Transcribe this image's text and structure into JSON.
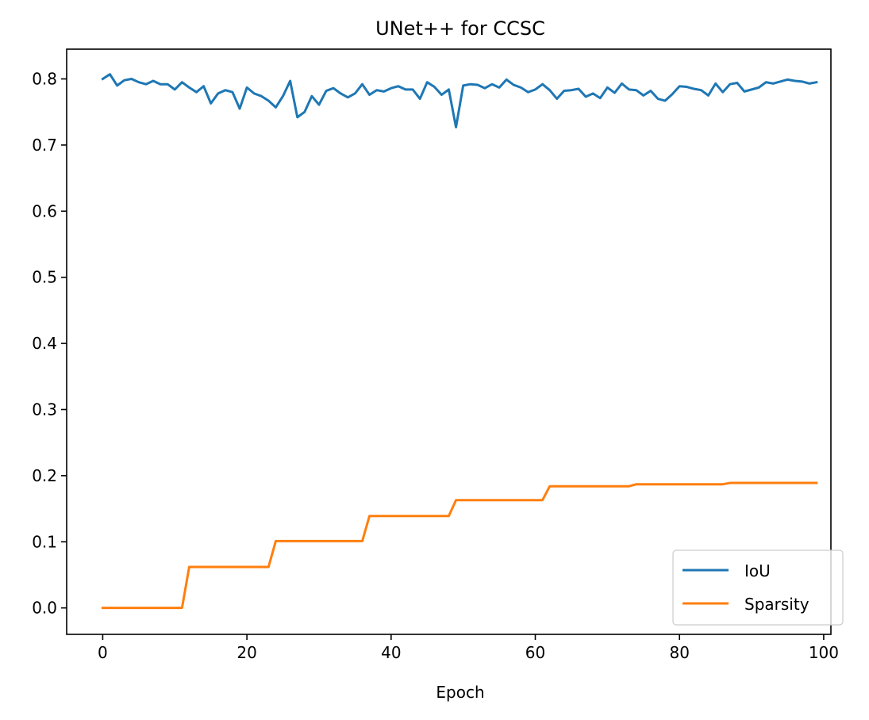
{
  "chart_data": {
    "type": "line",
    "title": "UNet++ for CCSC",
    "xlabel": "Epoch",
    "ylabel": "",
    "xlim": [
      -5,
      101
    ],
    "ylim": [
      -0.04,
      0.845
    ],
    "xticks": [
      0,
      20,
      40,
      60,
      80,
      100
    ],
    "yticks": [
      0.0,
      0.1,
      0.2,
      0.3,
      0.4,
      0.5,
      0.6,
      0.7,
      0.8
    ],
    "xtick_labels": [
      "0",
      "20",
      "40",
      "60",
      "80",
      "100"
    ],
    "ytick_labels": [
      "0.0",
      "0.1",
      "0.2",
      "0.3",
      "0.4",
      "0.5",
      "0.6",
      "0.7",
      "0.8"
    ],
    "grid": false,
    "legend_position": "lower-right",
    "series": [
      {
        "name": "IoU",
        "color": "#1f77b4",
        "x": [
          0,
          1,
          2,
          3,
          4,
          5,
          6,
          7,
          8,
          9,
          10,
          11,
          12,
          13,
          14,
          15,
          16,
          17,
          18,
          19,
          20,
          21,
          22,
          23,
          24,
          25,
          26,
          27,
          28,
          29,
          30,
          31,
          32,
          33,
          34,
          35,
          36,
          37,
          38,
          39,
          40,
          41,
          42,
          43,
          44,
          45,
          46,
          47,
          48,
          49,
          50,
          51,
          52,
          53,
          54,
          55,
          56,
          57,
          58,
          59,
          60,
          61,
          62,
          63,
          64,
          65,
          66,
          67,
          68,
          69,
          70,
          71,
          72,
          73,
          74,
          75,
          76,
          77,
          78,
          79,
          80,
          81,
          82,
          83,
          84,
          85,
          86,
          87,
          88,
          89,
          90,
          91,
          92,
          93,
          94,
          95,
          96,
          97,
          98,
          99
        ],
        "values": [
          0.8,
          0.807,
          0.79,
          0.798,
          0.8,
          0.795,
          0.792,
          0.797,
          0.792,
          0.792,
          0.784,
          0.795,
          0.787,
          0.78,
          0.789,
          0.763,
          0.778,
          0.783,
          0.78,
          0.755,
          0.787,
          0.778,
          0.774,
          0.767,
          0.757,
          0.774,
          0.797,
          0.742,
          0.75,
          0.774,
          0.761,
          0.782,
          0.786,
          0.778,
          0.772,
          0.778,
          0.792,
          0.776,
          0.783,
          0.781,
          0.786,
          0.789,
          0.784,
          0.784,
          0.77,
          0.795,
          0.788,
          0.776,
          0.784,
          0.727,
          0.79,
          0.792,
          0.791,
          0.786,
          0.792,
          0.787,
          0.799,
          0.791,
          0.787,
          0.78,
          0.784,
          0.792,
          0.783,
          0.77,
          0.782,
          0.783,
          0.785,
          0.773,
          0.778,
          0.771,
          0.787,
          0.779,
          0.793,
          0.784,
          0.783,
          0.775,
          0.782,
          0.77,
          0.767,
          0.777,
          0.789,
          0.788,
          0.785,
          0.783,
          0.775,
          0.793,
          0.78,
          0.792,
          0.794,
          0.781,
          0.784,
          0.787,
          0.795,
          0.793,
          0.796,
          0.799,
          0.797,
          0.796,
          0.793,
          0.795
        ]
      },
      {
        "name": "Sparsity",
        "color": "#ff7f0e",
        "x": [
          0,
          1,
          2,
          3,
          4,
          5,
          6,
          7,
          8,
          9,
          10,
          11,
          12,
          13,
          14,
          15,
          16,
          17,
          18,
          19,
          20,
          21,
          22,
          23,
          24,
          25,
          26,
          27,
          28,
          29,
          30,
          31,
          32,
          33,
          34,
          35,
          36,
          37,
          38,
          39,
          40,
          41,
          42,
          43,
          44,
          45,
          46,
          47,
          48,
          49,
          50,
          51,
          52,
          53,
          54,
          55,
          56,
          57,
          58,
          59,
          60,
          61,
          62,
          63,
          64,
          65,
          66,
          67,
          68,
          69,
          70,
          71,
          72,
          73,
          74,
          75,
          76,
          77,
          78,
          79,
          80,
          81,
          82,
          83,
          84,
          85,
          86,
          87,
          88,
          89,
          90,
          91,
          92,
          93,
          94,
          95,
          96,
          97,
          98,
          99
        ],
        "values": [
          0.0,
          0.0,
          0.0,
          0.0,
          0.0,
          0.0,
          0.0,
          0.0,
          0.0,
          0.0,
          0.0,
          0.0,
          0.062,
          0.062,
          0.062,
          0.062,
          0.062,
          0.062,
          0.062,
          0.062,
          0.062,
          0.062,
          0.062,
          0.062,
          0.101,
          0.101,
          0.101,
          0.101,
          0.101,
          0.101,
          0.101,
          0.101,
          0.101,
          0.101,
          0.101,
          0.101,
          0.101,
          0.139,
          0.139,
          0.139,
          0.139,
          0.139,
          0.139,
          0.139,
          0.139,
          0.139,
          0.139,
          0.139,
          0.139,
          0.163,
          0.163,
          0.163,
          0.163,
          0.163,
          0.163,
          0.163,
          0.163,
          0.163,
          0.163,
          0.163,
          0.163,
          0.163,
          0.184,
          0.184,
          0.184,
          0.184,
          0.184,
          0.184,
          0.184,
          0.184,
          0.184,
          0.184,
          0.184,
          0.184,
          0.187,
          0.187,
          0.187,
          0.187,
          0.187,
          0.187,
          0.187,
          0.187,
          0.187,
          0.187,
          0.187,
          0.187,
          0.187,
          0.189,
          0.189,
          0.189,
          0.189,
          0.189,
          0.189,
          0.189,
          0.189,
          0.189,
          0.189,
          0.189,
          0.189,
          0.189
        ]
      }
    ]
  }
}
